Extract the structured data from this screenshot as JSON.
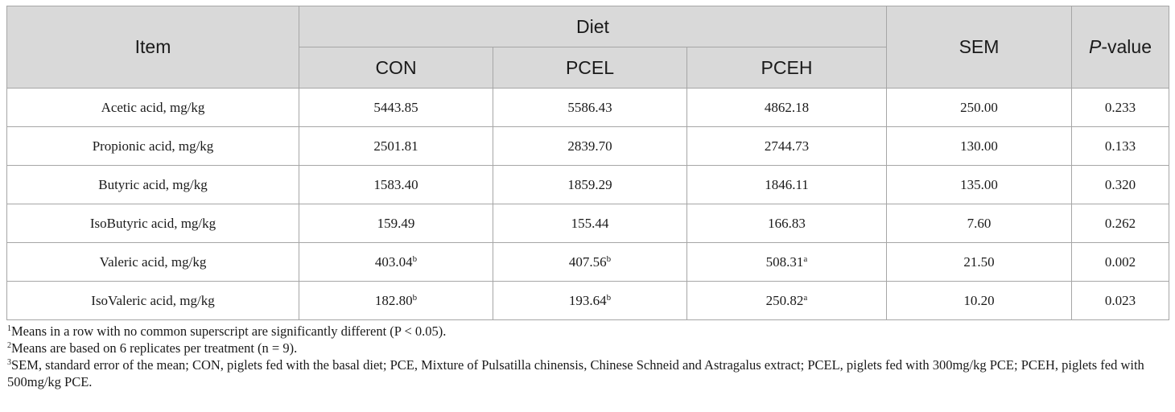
{
  "header": {
    "item": "Item",
    "diet": "Diet",
    "sem": "SEM",
    "p_italic": "P",
    "p_rest": "-value",
    "diets": [
      "CON",
      "PCEL",
      "PCEH"
    ]
  },
  "rows": [
    {
      "item": "Acetic acid, mg/kg",
      "con": "5443.85",
      "con_sup": "",
      "pcel": "5586.43",
      "pcel_sup": "",
      "pceh": "4862.18",
      "pceh_sup": "",
      "sem": "250.00",
      "p": "0.233"
    },
    {
      "item": "Propionic acid, mg/kg",
      "con": "2501.81",
      "con_sup": "",
      "pcel": "2839.70",
      "pcel_sup": "",
      "pceh": "2744.73",
      "pceh_sup": "",
      "sem": "130.00",
      "p": "0.133"
    },
    {
      "item": "Butyric acid, mg/kg",
      "con": "1583.40",
      "con_sup": "",
      "pcel": "1859.29",
      "pcel_sup": "",
      "pceh": "1846.11",
      "pceh_sup": "",
      "sem": "135.00",
      "p": "0.320"
    },
    {
      "item": "IsoButyric acid, mg/kg",
      "con": "159.49",
      "con_sup": "",
      "pcel": "155.44",
      "pcel_sup": "",
      "pceh": "166.83",
      "pceh_sup": "",
      "sem": "7.60",
      "p": "0.262"
    },
    {
      "item": "Valeric acid, mg/kg",
      "con": "403.04",
      "con_sup": "b",
      "pcel": "407.56",
      "pcel_sup": "b",
      "pceh": "508.31",
      "pceh_sup": "a",
      "sem": "21.50",
      "p": "0.002"
    },
    {
      "item": "IsoValeric acid, mg/kg",
      "con": "182.80",
      "con_sup": "b",
      "pcel": "193.64",
      "pcel_sup": "b",
      "pceh": "250.82",
      "pceh_sup": "a",
      "sem": "10.20",
      "p": "0.023"
    }
  ],
  "notes": [
    {
      "sup": "1",
      "text": "Means in a row with no common superscript are significantly different (P < 0.05)."
    },
    {
      "sup": "2",
      "text": "Means are based on 6 replicates per treatment (n = 9)."
    },
    {
      "sup": "3",
      "text": "SEM, standard error of the mean; CON, piglets fed with the basal diet; PCE, Mixture of Pulsatilla chinensis, Chinese Schneid and Astragalus extract; PCEL, piglets fed with 300mg/kg PCE; PCEH, piglets fed with 500mg/kg PCE."
    }
  ]
}
